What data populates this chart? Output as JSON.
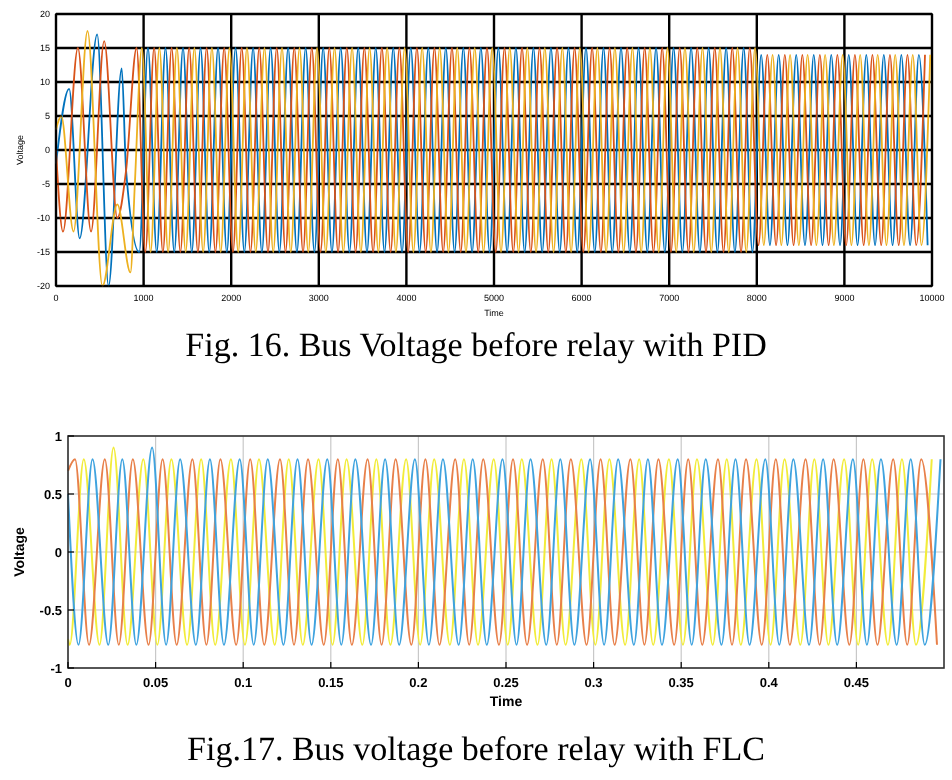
{
  "chart_data": [
    {
      "type": "line",
      "xlabel": "Time",
      "ylabel": "Voltage",
      "xlim": [
        0,
        10000
      ],
      "ylim": [
        -20,
        20
      ],
      "xticks": [
        0,
        1000,
        2000,
        3000,
        4000,
        5000,
        6000,
        7000,
        8000,
        9000,
        10000
      ],
      "yticks": [
        -20,
        -15,
        -10,
        -5,
        0,
        5,
        10,
        15,
        20
      ],
      "grid": true,
      "annotations": [
        "Fig. 16. Bus Voltage before relay with PID"
      ],
      "series": [
        {
          "color": "#0072bd",
          "x": [
            0,
            150,
            270,
            470,
            600,
            750,
            800,
            950,
            1050,
            1150,
            1250,
            1350,
            1450,
            1550,
            1650,
            1750,
            1850,
            1950,
            2050,
            2150,
            2250,
            2350,
            2450,
            2550,
            2650,
            2750,
            2850,
            2950,
            3050,
            3150,
            3250,
            3350,
            3450,
            3550,
            3650,
            3750,
            3850,
            3950,
            4050,
            4150,
            4250,
            4350,
            4450,
            4550,
            4650,
            4750,
            4850,
            4950,
            5050,
            5150,
            5250,
            5350,
            5450,
            5550,
            5650,
            5750,
            5850,
            5950,
            6050,
            6150,
            6250,
            6350,
            6450,
            6550,
            6650,
            6750,
            6850,
            6950,
            7050,
            7150,
            7250,
            7350,
            7450,
            7550,
            7650,
            7750,
            7850,
            7950,
            8050,
            8150,
            8250,
            8350,
            8450,
            8550,
            8650,
            8750,
            8850,
            8950,
            9050,
            9150,
            9250,
            9350,
            9450,
            9550,
            9650,
            9750,
            9850,
            9950
          ],
          "values": [
            -2,
            9,
            -13,
            17,
            -20,
            12,
            -3,
            -15,
            15,
            -15,
            15,
            -15,
            15,
            -15,
            15,
            -15,
            15,
            -15,
            15,
            -15,
            15,
            -15,
            15,
            -15,
            15,
            -15,
            15,
            -15,
            15,
            -15,
            15,
            -15,
            15,
            -15,
            15,
            -15,
            15,
            -15,
            15,
            -15,
            15,
            -15,
            15,
            -15,
            15,
            -15,
            15,
            -15,
            15,
            -15,
            15,
            -15,
            15,
            -15,
            15,
            -15,
            15,
            -15,
            15,
            -15,
            15,
            -15,
            15,
            -15,
            15,
            -15,
            15,
            -15,
            15,
            -15,
            15,
            -15,
            15,
            -15,
            15,
            -15,
            15,
            -15,
            14,
            -14,
            14,
            -14,
            14,
            -14,
            14,
            -14,
            14,
            -14,
            14,
            -14,
            14,
            -14,
            14,
            -14,
            14,
            -14,
            14,
            -14
          ]
        },
        {
          "color": "#d95319",
          "x": [
            0,
            80,
            250,
            400,
            550,
            700,
            800,
            920,
            1020,
            1120,
            1220,
            1320,
            1420,
            1520,
            1620,
            1720,
            1820,
            1920,
            2020,
            2120,
            2220,
            2320,
            2420,
            2520,
            2620,
            2720,
            2820,
            2920,
            3020,
            3120,
            3220,
            3320,
            3420,
            3520,
            3620,
            3720,
            3820,
            3920,
            4020,
            4120,
            4220,
            4320,
            4420,
            4520,
            4620,
            4720,
            4820,
            4920,
            5020,
            5120,
            5220,
            5320,
            5420,
            5520,
            5620,
            5720,
            5820,
            5920,
            6020,
            6120,
            6220,
            6320,
            6420,
            6520,
            6620,
            6720,
            6820,
            6920,
            7020,
            7120,
            7220,
            7320,
            7420,
            7520,
            7620,
            7720,
            7820,
            7920,
            8020,
            8120,
            8220,
            8320,
            8420,
            8520,
            8620,
            8720,
            8820,
            8920,
            9020,
            9120,
            9220,
            9320,
            9420,
            9520,
            9620,
            9720,
            9820,
            9920
          ],
          "values": [
            0,
            -12,
            15,
            -12,
            16,
            -10,
            -3,
            15,
            -15,
            15,
            -15,
            15,
            -15,
            15,
            -15,
            15,
            -15,
            15,
            -15,
            15,
            -15,
            15,
            -15,
            15,
            -15,
            15,
            -15,
            15,
            -15,
            15,
            -15,
            15,
            -15,
            15,
            -15,
            15,
            -15,
            15,
            -15,
            15,
            -15,
            15,
            -15,
            15,
            -15,
            15,
            -15,
            15,
            -15,
            15,
            -15,
            15,
            -15,
            15,
            -15,
            15,
            -15,
            15,
            -15,
            15,
            -15,
            15,
            -15,
            15,
            -15,
            15,
            -15,
            15,
            -15,
            15,
            -15,
            15,
            -15,
            15,
            -15,
            15,
            -15,
            15,
            -14,
            14,
            -14,
            14,
            -14,
            14,
            -14,
            14,
            -14,
            14,
            -14,
            14,
            -14,
            14,
            -14,
            14,
            -14,
            14,
            -14,
            14
          ]
        },
        {
          "color": "#edb120",
          "x": [
            0,
            60,
            200,
            360,
            530,
            700,
            850,
            900,
            980,
            1080,
            1180,
            1280,
            1380,
            1480,
            1580,
            1680,
            1780,
            1880,
            1980,
            2080,
            2180,
            2280,
            2380,
            2480,
            2580,
            2680,
            2780,
            2880,
            2980,
            3080,
            3180,
            3280,
            3380,
            3480,
            3580,
            3680,
            3780,
            3880,
            3980,
            4080,
            4180,
            4280,
            4380,
            4480,
            4580,
            4680,
            4780,
            4880,
            4980,
            5080,
            5180,
            5280,
            5380,
            5480,
            5580,
            5680,
            5780,
            5880,
            5980,
            6080,
            6180,
            6280,
            6380,
            6480,
            6580,
            6680,
            6780,
            6880,
            6980,
            7080,
            7180,
            7280,
            7380,
            7480,
            7580,
            7680,
            7780,
            7880,
            7980,
            8080,
            8180,
            8280,
            8380,
            8480,
            8580,
            8680,
            8780,
            8880,
            8980,
            9080,
            9180,
            9280,
            9380,
            9480,
            9580,
            9680,
            9780,
            9880,
            9980
          ],
          "values": [
            3,
            5,
            -12,
            17.5,
            -20,
            -8,
            -18,
            -5,
            15,
            -15,
            15,
            -15,
            15,
            -15,
            15,
            -15,
            15,
            -15,
            15,
            -15,
            15,
            -15,
            15,
            -15,
            15,
            -15,
            15,
            -15,
            15,
            -15,
            15,
            -15,
            15,
            -15,
            15,
            -15,
            15,
            -15,
            15,
            -15,
            15,
            -15,
            15,
            -15,
            15,
            -15,
            15,
            -15,
            15,
            -15,
            15,
            -15,
            15,
            -15,
            15,
            -15,
            15,
            -15,
            15,
            -15,
            15,
            -15,
            15,
            -15,
            15,
            -15,
            15,
            -15,
            15,
            -15,
            15,
            -15,
            15,
            -15,
            15,
            -15,
            15,
            -15,
            15,
            -14,
            14,
            -14,
            14,
            -14,
            14,
            -14,
            14,
            -14,
            14,
            -14,
            14,
            -14,
            14,
            -14,
            14,
            -14,
            14,
            -14,
            14
          ]
        }
      ]
    },
    {
      "type": "line",
      "xlabel": "Time",
      "ylabel": "Voltage",
      "xlim": [
        0,
        0.5
      ],
      "ylim": [
        -1,
        1
      ],
      "xticks": [
        0,
        0.05,
        0.1,
        0.15,
        0.2,
        0.25,
        0.3,
        0.35,
        0.4,
        0.45
      ],
      "yticks": [
        -1,
        -0.5,
        0,
        0.5,
        1
      ],
      "grid": true,
      "annotations": [
        "Fig.17. Bus voltage before relay with FLC"
      ],
      "series": [
        {
          "color": "#f2ec3a",
          "x": [
            0,
            0.001,
            0.009,
            0.018,
            0.026,
            0.034,
            0.043,
            0.051,
            0.059,
            0.068,
            0.076,
            0.084,
            0.093,
            0.101,
            0.109,
            0.118,
            0.126,
            0.134,
            0.143,
            0.151,
            0.159,
            0.168,
            0.176,
            0.184,
            0.193,
            0.201,
            0.209,
            0.218,
            0.226,
            0.234,
            0.243,
            0.251,
            0.259,
            0.268,
            0.276,
            0.284,
            0.293,
            0.301,
            0.309,
            0.318,
            0.326,
            0.334,
            0.343,
            0.351,
            0.359,
            0.368,
            0.376,
            0.384,
            0.393,
            0.401,
            0.409,
            0.418,
            0.426,
            0.434,
            0.443,
            0.451,
            0.459,
            0.468,
            0.476,
            0.484,
            0.493
          ],
          "values": [
            -0.75,
            -0.8,
            0.8,
            -0.8,
            0.9,
            -0.8,
            0.8,
            -0.8,
            0.8,
            -0.8,
            0.8,
            -0.8,
            0.8,
            -0.8,
            0.8,
            -0.8,
            0.8,
            -0.8,
            0.8,
            -0.8,
            0.8,
            -0.8,
            0.8,
            -0.8,
            0.8,
            -0.8,
            0.8,
            -0.8,
            0.8,
            -0.8,
            0.8,
            -0.8,
            0.8,
            -0.8,
            0.8,
            -0.8,
            0.8,
            -0.8,
            0.8,
            -0.8,
            0.8,
            -0.8,
            0.8,
            -0.8,
            0.8,
            -0.8,
            0.8,
            -0.8,
            0.8,
            -0.8,
            0.8,
            -0.8,
            0.8,
            -0.8,
            0.8,
            -0.8,
            0.8,
            -0.8,
            0.8,
            -0.8,
            0.8
          ]
        },
        {
          "color": "#e8804a",
          "x": [
            0,
            0.004,
            0.012,
            0.021,
            0.029,
            0.037,
            0.046,
            0.054,
            0.062,
            0.071,
            0.079,
            0.087,
            0.096,
            0.104,
            0.112,
            0.121,
            0.129,
            0.137,
            0.146,
            0.154,
            0.162,
            0.171,
            0.179,
            0.187,
            0.196,
            0.204,
            0.212,
            0.221,
            0.229,
            0.237,
            0.246,
            0.254,
            0.262,
            0.271,
            0.279,
            0.287,
            0.296,
            0.304,
            0.312,
            0.321,
            0.329,
            0.337,
            0.346,
            0.354,
            0.362,
            0.371,
            0.379,
            0.387,
            0.396,
            0.404,
            0.412,
            0.421,
            0.429,
            0.437,
            0.446,
            0.454,
            0.462,
            0.471,
            0.479,
            0.487,
            0.496
          ],
          "values": [
            0.7,
            0.8,
            -0.8,
            0.8,
            -0.8,
            0.8,
            -0.8,
            0.8,
            -0.8,
            0.8,
            -0.8,
            0.8,
            -0.8,
            0.8,
            -0.8,
            0.8,
            -0.8,
            0.8,
            -0.8,
            0.8,
            -0.8,
            0.8,
            -0.8,
            0.8,
            -0.8,
            0.8,
            -0.8,
            0.8,
            -0.8,
            0.8,
            -0.8,
            0.8,
            -0.8,
            0.8,
            -0.8,
            0.8,
            -0.8,
            0.8,
            -0.8,
            0.8,
            -0.8,
            0.8,
            -0.8,
            0.8,
            -0.8,
            0.8,
            -0.8,
            0.8,
            -0.8,
            0.8,
            -0.8,
            0.8,
            -0.8,
            0.8,
            -0.8,
            0.8,
            -0.8,
            0.8,
            -0.8,
            0.8,
            -0.8
          ]
        },
        {
          "color": "#3fa3df",
          "x": [
            0,
            0.006,
            0.014,
            0.023,
            0.031,
            0.039,
            0.048,
            0.056,
            0.064,
            0.073,
            0.081,
            0.089,
            0.098,
            0.106,
            0.114,
            0.123,
            0.131,
            0.139,
            0.148,
            0.156,
            0.164,
            0.173,
            0.181,
            0.189,
            0.198,
            0.206,
            0.214,
            0.223,
            0.231,
            0.239,
            0.248,
            0.256,
            0.264,
            0.273,
            0.281,
            0.289,
            0.298,
            0.306,
            0.314,
            0.323,
            0.331,
            0.339,
            0.348,
            0.356,
            0.364,
            0.373,
            0.381,
            0.389,
            0.398,
            0.406,
            0.414,
            0.423,
            0.431,
            0.439,
            0.448,
            0.456,
            0.464,
            0.473,
            0.481,
            0.489,
            0.498
          ],
          "values": [
            0.5,
            -0.8,
            0.8,
            -0.8,
            0.8,
            -0.8,
            0.9,
            -0.8,
            0.8,
            -0.8,
            0.8,
            -0.8,
            0.8,
            -0.8,
            0.8,
            -0.8,
            0.8,
            -0.8,
            0.8,
            -0.8,
            0.8,
            -0.8,
            0.8,
            -0.8,
            0.8,
            -0.8,
            0.8,
            -0.8,
            0.8,
            -0.8,
            0.8,
            -0.8,
            0.8,
            -0.8,
            0.8,
            -0.8,
            0.8,
            -0.8,
            0.8,
            -0.8,
            0.8,
            -0.8,
            0.8,
            -0.8,
            0.8,
            -0.8,
            0.8,
            -0.8,
            0.8,
            -0.8,
            0.8,
            -0.8,
            0.8,
            -0.8,
            0.8,
            -0.8,
            0.8,
            -0.8,
            0.8,
            -0.8,
            0.8
          ]
        }
      ]
    }
  ]
}
